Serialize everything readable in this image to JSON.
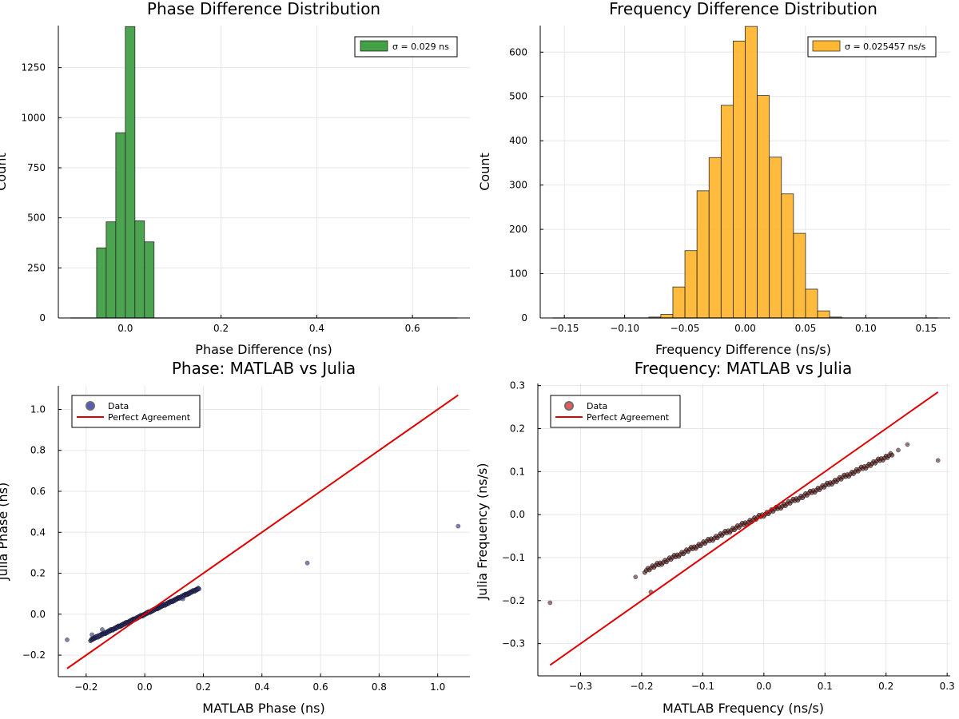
{
  "chart_data": [
    {
      "type": "bar",
      "title": "Phase Difference Distribution",
      "xlabel": "Phase Difference (ns)",
      "ylabel": "Count",
      "xlim": [
        -0.14,
        0.72
      ],
      "ylim": [
        0,
        1460
      ],
      "xticks": [
        0.0,
        0.2,
        0.4,
        0.6
      ],
      "xtick_labels": [
        "0.0",
        "0.2",
        "0.4",
        "0.6"
      ],
      "yticks": [
        0,
        250,
        500,
        750,
        1000,
        1250
      ],
      "ytick_labels": [
        "0",
        "250",
        "500",
        "750",
        "1000",
        "1250"
      ],
      "bin_width": 0.02,
      "bin_starts": [
        -0.06,
        -0.04,
        -0.02,
        0.0,
        0.02,
        0.04
      ],
      "values": [
        350,
        480,
        925,
        1455,
        485,
        380
      ],
      "color": "#43a047",
      "legend": {
        "label": "σ = 0.029 ns",
        "position": "top-right"
      },
      "grid": true
    },
    {
      "type": "bar",
      "title": "Frequency Difference Distribution",
      "xlabel": "Frequency Difference (ns/s)",
      "ylabel": "Count",
      "xlim": [
        -0.17,
        0.17
      ],
      "ylim": [
        0,
        660
      ],
      "xticks": [
        -0.15,
        -0.1,
        -0.05,
        0.0,
        0.05,
        0.1,
        0.15
      ],
      "xtick_labels": [
        "−0.15",
        "−0.10",
        "−0.05",
        "0.00",
        "0.05",
        "0.10",
        "0.15"
      ],
      "yticks": [
        0,
        100,
        200,
        300,
        400,
        500,
        600
      ],
      "ytick_labels": [
        "0",
        "100",
        "200",
        "300",
        "400",
        "500",
        "600"
      ],
      "bin_width": 0.01,
      "bin_starts": [
        -0.08,
        -0.07,
        -0.06,
        -0.05,
        -0.04,
        -0.03,
        -0.02,
        -0.01,
        0.0,
        0.01,
        0.02,
        0.03,
        0.04,
        0.05,
        0.06,
        0.07
      ],
      "values": [
        2,
        8,
        70,
        152,
        287,
        362,
        480,
        625,
        658,
        502,
        363,
        280,
        191,
        65,
        16,
        2
      ],
      "color": "#ffb833",
      "legend": {
        "label": "σ = 0.025457 ns/s",
        "position": "top-right"
      },
      "grid": true
    },
    {
      "type": "scatter",
      "title": "Phase: MATLAB vs Julia",
      "xlabel": "MATLAB Phase (ns)",
      "ylabel": "Julia Phase (ns)",
      "xlim": [
        -0.295,
        1.11
      ],
      "ylim": [
        -0.305,
        1.115
      ],
      "xticks": [
        -0.2,
        0.0,
        0.2,
        0.4,
        0.6,
        0.8,
        1.0
      ],
      "xtick_labels": [
        "−0.2",
        "0.0",
        "0.2",
        "0.4",
        "0.6",
        "0.8",
        "1.0"
      ],
      "yticks": [
        -0.2,
        0.0,
        0.2,
        0.4,
        0.6,
        0.8,
        1.0
      ],
      "ytick_labels": [
        "−0.2",
        "0.0",
        "0.2",
        "0.4",
        "0.6",
        "0.8",
        "1.0"
      ],
      "trend": {
        "x0": -0.185,
        "x1": 0.185,
        "slope": 0.68
      },
      "outliers": [
        {
          "x": -0.265,
          "y": -0.125
        },
        {
          "x": -0.18,
          "y": -0.1
        },
        {
          "x": -0.16,
          "y": -0.105
        },
        {
          "x": -0.145,
          "y": -0.075
        },
        {
          "x": 0.13,
          "y": 0.075
        },
        {
          "x": 0.555,
          "y": 0.25
        },
        {
          "x": 1.07,
          "y": 0.43
        }
      ],
      "reference_line": {
        "x0": -0.265,
        "x1": 1.07
      },
      "point_color": "#2b2f80",
      "legend": {
        "entries": [
          "Data",
          "Perfect Agreement"
        ],
        "position": "top-left"
      },
      "grid": true
    },
    {
      "type": "scatter",
      "title": "Frequency: MATLAB vs Julia",
      "xlabel": "MATLAB Frequency (ns/s)",
      "ylabel": "Julia Frequency (ns/s)",
      "xlim": [
        -0.37,
        0.305
      ],
      "ylim": [
        -0.375,
        0.305
      ],
      "xticks": [
        -0.3,
        -0.2,
        -0.1,
        0.0,
        0.1,
        0.2,
        0.3
      ],
      "xtick_labels": [
        "−0.3",
        "−0.2",
        "−0.1",
        "0.0",
        "0.1",
        "0.2",
        "0.3"
      ],
      "yticks": [
        -0.3,
        -0.2,
        -0.1,
        0.0,
        0.1,
        0.2,
        0.3
      ],
      "ytick_labels": [
        "−0.3",
        "−0.2",
        "−0.1",
        "0.0",
        "0.1",
        "0.2",
        "0.3"
      ],
      "trend": {
        "x0": -0.195,
        "x1": 0.21,
        "slope": 0.67
      },
      "outliers": [
        {
          "x": -0.35,
          "y": -0.205
        },
        {
          "x": -0.21,
          "y": -0.145
        },
        {
          "x": -0.185,
          "y": -0.18
        },
        {
          "x": 0.22,
          "y": 0.15
        },
        {
          "x": 0.235,
          "y": 0.163
        },
        {
          "x": 0.285,
          "y": 0.126
        }
      ],
      "reference_line": {
        "x0": -0.35,
        "x1": 0.285
      },
      "point_color": "#5a1f1f",
      "legend": {
        "entries": [
          "Data",
          "Perfect Agreement"
        ],
        "position": "top-left"
      },
      "grid": true
    }
  ]
}
